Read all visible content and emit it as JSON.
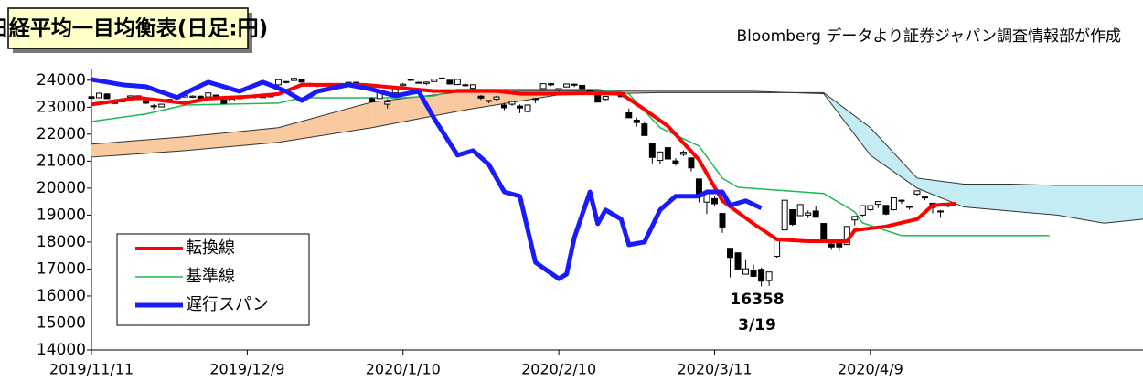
{
  "chart_data": {
    "type": "ichimoku",
    "title": "日経平均一目均衡表(日足:円)",
    "source": "Bloomberg データより証券ジャパン調査情報部が作成",
    "annotations": [
      "16358",
      "3/19"
    ],
    "xlim": [
      0,
      135
    ],
    "xticks": [
      {
        "value": 0,
        "label": "2019/11/11"
      },
      {
        "value": 20,
        "label": "2019/12/9"
      },
      {
        "value": 40,
        "label": "2020/1/10"
      },
      {
        "value": 60,
        "label": "2020/2/10"
      },
      {
        "value": 80,
        "label": "2020/3/11"
      },
      {
        "value": 100,
        "label": "2020/4/9"
      }
    ],
    "ylim": [
      14000,
      24400
    ],
    "yticks": [
      14000,
      15000,
      16000,
      17000,
      18000,
      19000,
      20000,
      21000,
      22000,
      23000,
      24000
    ],
    "ohlc": [
      [
        23390,
        23400,
        23280,
        23330
      ],
      [
        23350,
        23540,
        23340,
        23520
      ],
      [
        23490,
        23520,
        23300,
        23320
      ],
      [
        23250,
        23300,
        23120,
        23140
      ],
      [
        23200,
        23330,
        23180,
        23300
      ],
      [
        23370,
        23440,
        23350,
        23420
      ],
      [
        23420,
        23430,
        23260,
        23290
      ],
      [
        23260,
        23280,
        23120,
        23150
      ],
      [
        23050,
        23120,
        22920,
        23040
      ],
      [
        23010,
        23130,
        22990,
        23110
      ],
      [
        23200,
        23310,
        23190,
        23290
      ],
      [
        23320,
        23410,
        23300,
        23370
      ],
      [
        23380,
        23440,
        23360,
        23440
      ],
      [
        23370,
        23440,
        23340,
        23410
      ],
      [
        23410,
        23420,
        23280,
        23290
      ],
      [
        23380,
        23530,
        23370,
        23530
      ],
      [
        23450,
        23460,
        23330,
        23380
      ],
      [
        23310,
        23330,
        23130,
        23140
      ],
      [
        23230,
        23320,
        23220,
        23300
      ],
      [
        23320,
        23380,
        23300,
        23350
      ],
      [
        23410,
        23460,
        23400,
        23430
      ],
      [
        23410,
        23420,
        23320,
        23410
      ],
      [
        23390,
        23430,
        23350,
        23390
      ],
      [
        23400,
        23460,
        23380,
        23420
      ],
      [
        23830,
        24040,
        23800,
        24020
      ],
      [
        23950,
        23970,
        23880,
        23950
      ],
      [
        23990,
        24090,
        23960,
        24070
      ],
      [
        24030,
        24050,
        23930,
        23930
      ],
      [
        23880,
        23900,
        23780,
        23860
      ],
      [
        23800,
        23820,
        23740,
        23820
      ],
      [
        23840,
        23860,
        23820,
        23820
      ],
      [
        23830,
        23850,
        23810,
        23830
      ],
      [
        23800,
        23830,
        23780,
        23780
      ],
      [
        23810,
        23930,
        23800,
        23920
      ],
      [
        23920,
        23950,
        23800,
        23840
      ],
      [
        23780,
        23780,
        23640,
        23660
      ],
      [
        23320,
        23370,
        23190,
        23200
      ],
      [
        23320,
        23580,
        23300,
        23580
      ],
      [
        23110,
        23300,
        22950,
        23200
      ],
      [
        23530,
        23770,
        23520,
        23740
      ],
      [
        23800,
        23900,
        23780,
        23850
      ],
      [
        24000,
        24030,
        23940,
        24030
      ],
      [
        23920,
        23950,
        23880,
        23920
      ],
      [
        23880,
        23950,
        23820,
        23930
      ],
      [
        23950,
        24060,
        23940,
        24040
      ],
      [
        24050,
        24100,
        24030,
        24080
      ],
      [
        24000,
        24010,
        23860,
        23860
      ],
      [
        23840,
        24030,
        23820,
        24030
      ],
      [
        23830,
        23880,
        23750,
        23800
      ],
      [
        23700,
        23830,
        23670,
        23830
      ],
      [
        23410,
        23450,
        23270,
        23340
      ],
      [
        23250,
        23260,
        23150,
        23220
      ],
      [
        23300,
        23420,
        23250,
        23380
      ],
      [
        23080,
        23160,
        22890,
        22980
      ],
      [
        23110,
        23240,
        23050,
        23210
      ],
      [
        23040,
        23100,
        22780,
        22970
      ],
      [
        22840,
        23100,
        22800,
        23080
      ],
      [
        23320,
        23350,
        23150,
        23320
      ],
      [
        23690,
        23880,
        23690,
        23870
      ],
      [
        23870,
        23900,
        23780,
        23830
      ],
      [
        23640,
        23690,
        23580,
        23690
      ],
      [
        23750,
        23870,
        23740,
        23860
      ],
      [
        23850,
        23880,
        23750,
        23830
      ],
      [
        23810,
        23810,
        23660,
        23690
      ],
      [
        23610,
        23620,
        23500,
        23520
      ],
      [
        23450,
        23460,
        23190,
        23190
      ],
      [
        23290,
        23420,
        23230,
        23400
      ],
      [
        23520,
        23560,
        23450,
        23480
      ],
      [
        23530,
        23560,
        23370,
        23390
      ],
      [
        22790,
        22950,
        22600,
        22610
      ],
      [
        22520,
        22610,
        22280,
        22430
      ],
      [
        22380,
        22460,
        21950,
        21950
      ],
      [
        21640,
        21650,
        20920,
        21140
      ],
      [
        21030,
        21350,
        20880,
        21340
      ],
      [
        21500,
        21520,
        21080,
        21080
      ],
      [
        21010,
        21110,
        20830,
        20900
      ],
      [
        21250,
        21400,
        21180,
        21330
      ],
      [
        21120,
        21120,
        20620,
        20750
      ],
      [
        20340,
        20350,
        19470,
        19700
      ],
      [
        19480,
        19950,
        19040,
        19870
      ],
      [
        19610,
        19690,
        19330,
        19420
      ],
      [
        19060,
        19060,
        18340,
        18560
      ],
      [
        17770,
        17770,
        16690,
        17430
      ],
      [
        17600,
        17600,
        16970,
        17000
      ],
      [
        16810,
        17330,
        16800,
        17010
      ],
      [
        16960,
        17160,
        16700,
        16730
      ],
      [
        16990,
        17050,
        16358,
        16550
      ],
      [
        16570,
        16890,
        16380,
        16890
      ],
      [
        17470,
        18100,
        17420,
        18090
      ],
      [
        18450,
        19560,
        18440,
        19550
      ],
      [
        19200,
        19210,
        18600,
        18660
      ],
      [
        18980,
        19390,
        18960,
        19390
      ],
      [
        19000,
        19170,
        18890,
        19080
      ],
      [
        19150,
        19340,
        18910,
        18920
      ],
      [
        18690,
        18690,
        18030,
        18070
      ],
      [
        17930,
        18000,
        17710,
        17820
      ],
      [
        17950,
        18060,
        17650,
        17820
      ],
      [
        17910,
        18580,
        17890,
        18580
      ],
      [
        18820,
        18960,
        18620,
        18950
      ],
      [
        19000,
        19350,
        18910,
        19350
      ],
      [
        19200,
        19370,
        19150,
        19350
      ],
      [
        19400,
        19500,
        19260,
        19500
      ],
      [
        19360,
        19370,
        19000,
        19040
      ],
      [
        19200,
        19640,
        19170,
        19640
      ],
      [
        19520,
        19580,
        19420,
        19550
      ],
      [
        19320,
        19350,
        19200,
        19290
      ],
      [
        19780,
        19900,
        19720,
        19900
      ],
      [
        19670,
        19700,
        19550,
        19670
      ],
      [
        19440,
        19450,
        19070,
        19280
      ],
      [
        19150,
        19190,
        18900,
        19140
      ],
      [
        19330,
        19460,
        19280,
        19430
      ]
    ],
    "cloud": {
      "x": [
        0,
        12,
        24,
        36,
        48,
        60,
        73,
        85,
        94,
        100,
        106,
        112,
        118,
        124,
        130,
        135
      ],
      "span_a": [
        21630,
        21900,
        22240,
        23190,
        23590,
        23600,
        23590,
        23590,
        23500,
        21220,
        20000,
        19300,
        19150,
        19000,
        18700,
        18850
      ],
      "span_b": [
        21150,
        21390,
        21700,
        22240,
        22900,
        23460,
        23540,
        23540,
        23540,
        22240,
        20370,
        20150,
        20150,
        20100,
        20100,
        20100
      ],
      "colors": [
        "#f9c9a0",
        "#c4ecf4"
      ]
    },
    "series": [
      {
        "name": "転換線",
        "color": "#ff0000",
        "width": 4,
        "x": [
          0,
          6,
          9,
          12,
          15,
          20,
          24,
          27,
          31,
          35,
          40,
          44,
          47,
          52,
          55,
          59,
          64,
          68,
          71,
          74,
          78,
          81,
          85,
          88,
          92,
          97,
          98,
          102,
          106,
          108,
          111
        ],
        "values": [
          23100,
          23350,
          23250,
          23150,
          23320,
          23390,
          23490,
          23830,
          23830,
          23830,
          23700,
          23600,
          23600,
          23600,
          23500,
          23500,
          23520,
          23500,
          22920,
          22300,
          21050,
          19530,
          18680,
          18100,
          18030,
          18030,
          18440,
          18580,
          18850,
          19360,
          19420
        ]
      },
      {
        "name": "基準線",
        "color": "#1db954",
        "width": 1.5,
        "x": [
          0,
          7,
          12,
          24,
          27,
          40,
          44,
          47,
          65,
          69,
          73,
          78,
          81,
          83,
          94,
          98,
          99,
          104,
          123
        ],
        "values": [
          22470,
          22750,
          23080,
          23150,
          23350,
          23350,
          23420,
          23660,
          23660,
          23490,
          22240,
          21560,
          20370,
          20030,
          19800,
          19120,
          18710,
          18240,
          18240
        ]
      },
      {
        "name": "遅行スパン",
        "color": "#1a1aff",
        "width": 5,
        "x": [
          0,
          4,
          7,
          11,
          13,
          15,
          19,
          22,
          25,
          27,
          29,
          33,
          36,
          39,
          42,
          44,
          47,
          49,
          51,
          53,
          55,
          57,
          60,
          61,
          62,
          64,
          65,
          66,
          68,
          69,
          71,
          73,
          75,
          78,
          79,
          81,
          82,
          84,
          86
        ],
        "values": [
          24030,
          23830,
          23760,
          23360,
          23660,
          23930,
          23590,
          23930,
          23590,
          23250,
          23590,
          23830,
          23660,
          23420,
          23590,
          22580,
          21220,
          21390,
          20880,
          19860,
          19700,
          17250,
          16640,
          16810,
          18170,
          19860,
          18680,
          19190,
          18850,
          17900,
          18000,
          19190,
          19700,
          19700,
          19860,
          19860,
          19360,
          19530,
          19260
        ]
      }
    ]
  }
}
